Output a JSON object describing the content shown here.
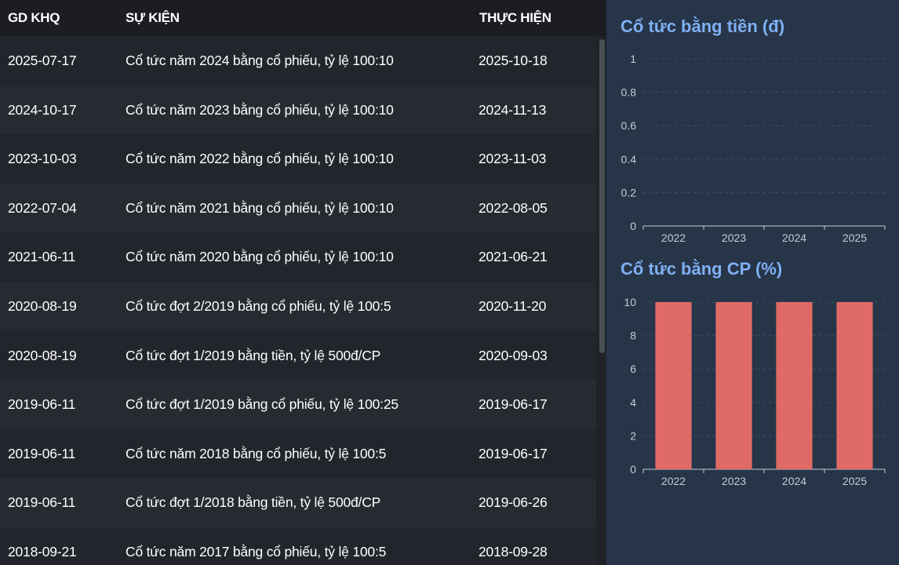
{
  "table": {
    "headers": [
      "GD KHQ",
      "SỰ KIỆN",
      "THỰC HIỆN"
    ],
    "rows": [
      [
        "2025-07-17",
        "Cổ tức năm 2024 bằng cổ phiếu, tỷ lệ 100:10",
        "2025-10-18"
      ],
      [
        "2024-10-17",
        "Cổ tức năm 2023 bằng cổ phiếu, tỷ lệ 100:10",
        "2024-11-13"
      ],
      [
        "2023-10-03",
        "Cổ tức năm 2022 bằng cổ phiếu, tỷ lệ 100:10",
        "2023-11-03"
      ],
      [
        "2022-07-04",
        "Cổ tức năm 2021 bằng cổ phiếu, tỷ lệ 100:10",
        "2022-08-05"
      ],
      [
        "2021-06-11",
        "Cổ tức năm 2020 bằng cổ phiếu, tỷ lệ 100:10",
        "2021-06-21"
      ],
      [
        "2020-08-19",
        "Cổ tức đợt 2/2019 bằng cổ phiếu, tỷ lệ 100:5",
        "2020-11-20"
      ],
      [
        "2020-08-19",
        "Cổ tức đợt 1/2019 bằng tiền, tỷ lệ 500đ/CP",
        "2020-09-03"
      ],
      [
        "2019-06-11",
        "Cổ tức đợt 1/2019 bằng cổ phiếu, tỷ lệ 100:25",
        "2019-06-17"
      ],
      [
        "2019-06-11",
        "Cổ tức năm 2018 bằng cổ phiếu, tỷ lệ 100:5",
        "2019-06-17"
      ],
      [
        "2019-06-11",
        "Cổ tức đợt 1/2018 bằng tiền, tỷ lệ 500đ/CP",
        "2019-06-26"
      ],
      [
        "2018-09-21",
        "Cổ tức năm 2017 bằng cổ phiếu, tỷ lệ 100:5",
        "2018-09-28"
      ]
    ]
  },
  "colors": {
    "accent_title": "#7fb0f4",
    "bar": "#e06b66",
    "panel_bg": "#273548",
    "table_bg": "#1f2227"
  },
  "chart_data": [
    {
      "type": "bar",
      "title": "Cổ tức bằng tiền (đ)",
      "categories": [
        "2022",
        "2023",
        "2024",
        "2025"
      ],
      "values": [
        0,
        0,
        0,
        0
      ],
      "ylim": [
        0,
        1
      ],
      "yticks": [
        "0",
        "0.2",
        "0.4",
        "0.6",
        "0.8",
        "1"
      ],
      "xlabel": "",
      "ylabel": "",
      "grid": true
    },
    {
      "type": "bar",
      "title": "Cổ tức bằng CP (%)",
      "categories": [
        "2022",
        "2023",
        "2024",
        "2025"
      ],
      "values": [
        10,
        10,
        10,
        10
      ],
      "ylim": [
        0,
        10
      ],
      "yticks": [
        "0",
        "2",
        "4",
        "6",
        "8",
        "10"
      ],
      "xlabel": "",
      "ylabel": "",
      "grid": true
    }
  ]
}
